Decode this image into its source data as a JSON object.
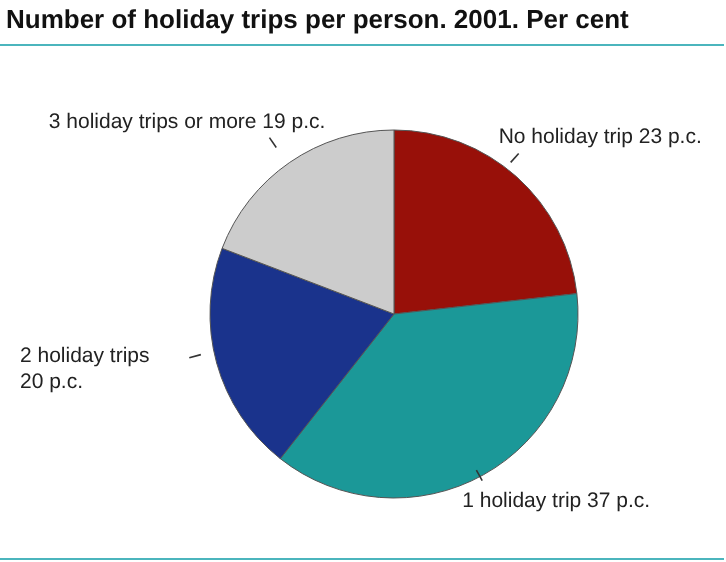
{
  "chart_data": {
    "type": "pie",
    "title": "Number of holiday trips per person. 2001. Per cent",
    "categories": [
      "No holiday trip",
      "1 holiday trip",
      "2 holiday trips",
      "3 holiday trips or more"
    ],
    "values": [
      23,
      37,
      20,
      19
    ],
    "value_labels": [
      "23 p.c.",
      "37 p.c.",
      "20 p.c.",
      "19 p.c."
    ],
    "colors": [
      "#981009",
      "#1b9898",
      "#1a338c",
      "#cccccc"
    ]
  }
}
